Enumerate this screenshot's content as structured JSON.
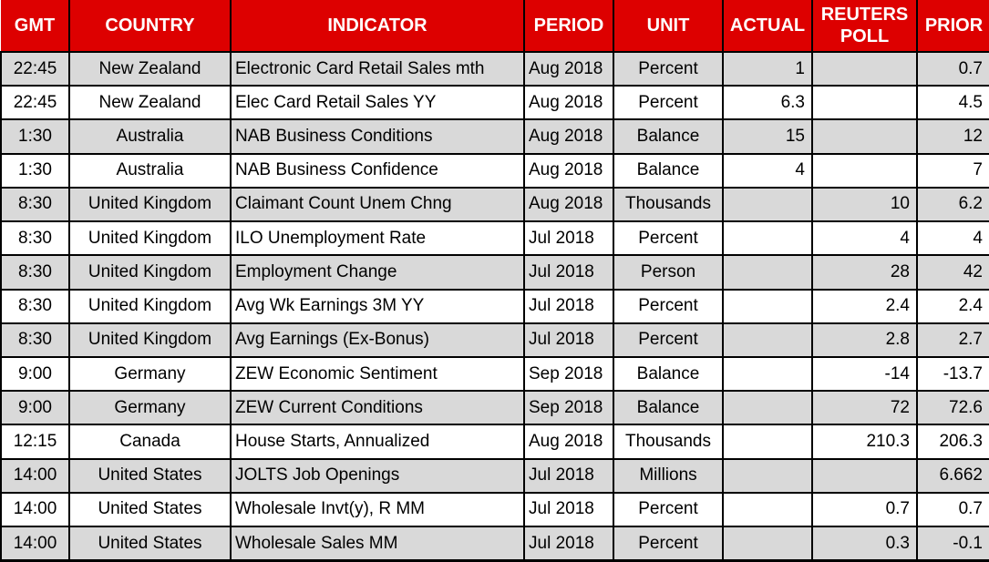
{
  "colors": {
    "header_bg": "#DD0000",
    "header_text": "#FFFFFF",
    "stripe_bg": "#D9D9D9",
    "row_bg": "#FFFFFF",
    "border": "#000000",
    "text": "#000000"
  },
  "chart_data": {
    "type": "table",
    "columns": [
      {
        "key": "gmt",
        "label": "GMT"
      },
      {
        "key": "country",
        "label": "COUNTRY"
      },
      {
        "key": "indicator",
        "label": "INDICATOR"
      },
      {
        "key": "period",
        "label": "PERIOD"
      },
      {
        "key": "unit",
        "label": "UNIT"
      },
      {
        "key": "actual",
        "label": "ACTUAL"
      },
      {
        "key": "reuters_poll",
        "label": "REUTERS POLL"
      },
      {
        "key": "prior",
        "label": "PRIOR"
      }
    ],
    "rows": [
      {
        "gmt": "22:45",
        "country": "New Zealand",
        "indicator": "Electronic Card Retail Sales mth",
        "period": "Aug 2018",
        "unit": "Percent",
        "actual": "1",
        "reuters_poll": "",
        "prior": "0.7"
      },
      {
        "gmt": "22:45",
        "country": "New Zealand",
        "indicator": "Elec Card Retail Sales YY",
        "period": "Aug 2018",
        "unit": "Percent",
        "actual": "6.3",
        "reuters_poll": "",
        "prior": "4.5"
      },
      {
        "gmt": "1:30",
        "country": "Australia",
        "indicator": "NAB Business Conditions",
        "period": "Aug 2018",
        "unit": "Balance",
        "actual": "15",
        "reuters_poll": "",
        "prior": "12"
      },
      {
        "gmt": "1:30",
        "country": "Australia",
        "indicator": "NAB Business Confidence",
        "period": "Aug 2018",
        "unit": "Balance",
        "actual": "4",
        "reuters_poll": "",
        "prior": "7"
      },
      {
        "gmt": "8:30",
        "country": "United Kingdom",
        "indicator": "Claimant Count Unem Chng",
        "period": "Aug 2018",
        "unit": "Thousands",
        "actual": "",
        "reuters_poll": "10",
        "prior": "6.2"
      },
      {
        "gmt": "8:30",
        "country": "United Kingdom",
        "indicator": "ILO Unemployment Rate",
        "period": "Jul 2018",
        "unit": "Percent",
        "actual": "",
        "reuters_poll": "4",
        "prior": "4"
      },
      {
        "gmt": "8:30",
        "country": "United Kingdom",
        "indicator": "Employment Change",
        "period": "Jul 2018",
        "unit": "Person",
        "actual": "",
        "reuters_poll": "28",
        "prior": "42"
      },
      {
        "gmt": "8:30",
        "country": "United Kingdom",
        "indicator": "Avg Wk Earnings 3M YY",
        "period": "Jul 2018",
        "unit": "Percent",
        "actual": "",
        "reuters_poll": "2.4",
        "prior": "2.4"
      },
      {
        "gmt": "8:30",
        "country": "United Kingdom",
        "indicator": "Avg Earnings (Ex-Bonus)",
        "period": "Jul 2018",
        "unit": "Percent",
        "actual": "",
        "reuters_poll": "2.8",
        "prior": "2.7"
      },
      {
        "gmt": "9:00",
        "country": "Germany",
        "indicator": "ZEW Economic Sentiment",
        "period": "Sep 2018",
        "unit": "Balance",
        "actual": "",
        "reuters_poll": "-14",
        "prior": "-13.7"
      },
      {
        "gmt": "9:00",
        "country": "Germany",
        "indicator": "ZEW Current Conditions",
        "period": "Sep 2018",
        "unit": "Balance",
        "actual": "",
        "reuters_poll": "72",
        "prior": "72.6"
      },
      {
        "gmt": "12:15",
        "country": "Canada",
        "indicator": "House Starts, Annualized",
        "period": "Aug 2018",
        "unit": "Thousands",
        "actual": "",
        "reuters_poll": "210.3",
        "prior": "206.3"
      },
      {
        "gmt": "14:00",
        "country": "United States",
        "indicator": "JOLTS Job Openings",
        "period": "Jul 2018",
        "unit": "Millions",
        "actual": "",
        "reuters_poll": "",
        "prior": "6.662"
      },
      {
        "gmt": "14:00",
        "country": "United States",
        "indicator": "Wholesale Invt(y), R MM",
        "period": "Jul 2018",
        "unit": "Percent",
        "actual": "",
        "reuters_poll": "0.7",
        "prior": "0.7"
      },
      {
        "gmt": "14:00",
        "country": "United States",
        "indicator": "Wholesale Sales MM",
        "period": "Jul 2018",
        "unit": "Percent",
        "actual": "",
        "reuters_poll": "0.3",
        "prior": "-0.1"
      }
    ]
  }
}
